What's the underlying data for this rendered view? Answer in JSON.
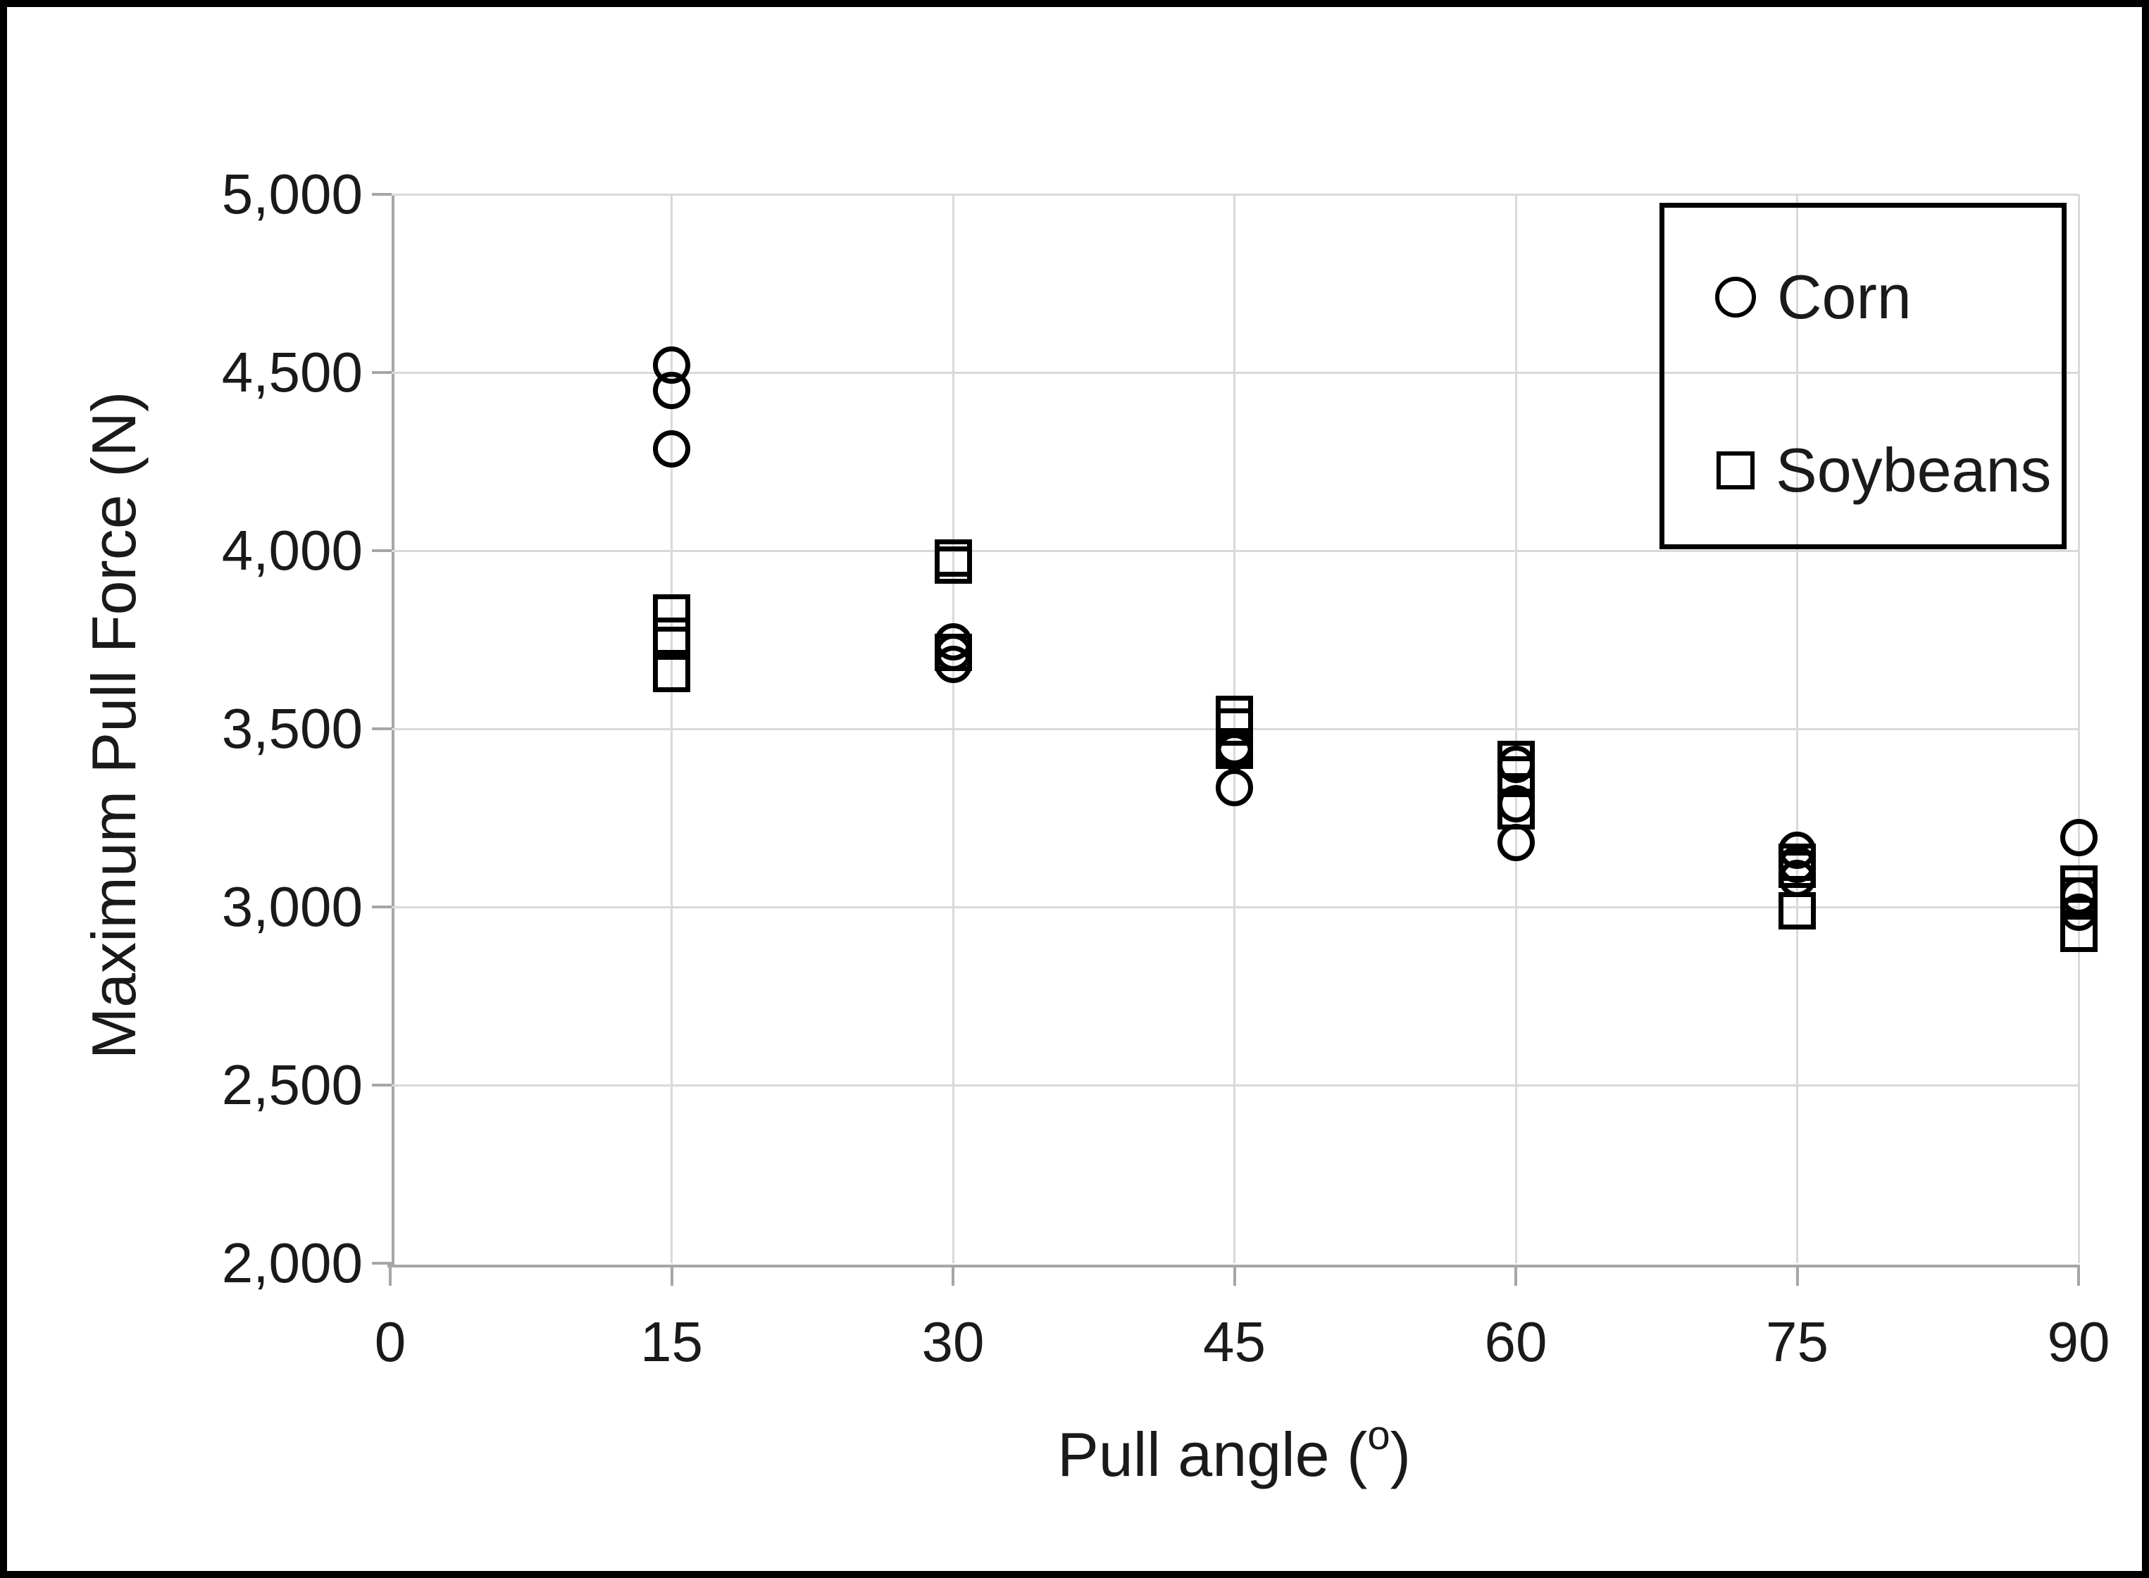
{
  "colors": {
    "background": "#ffffff",
    "frame_border": "#000000",
    "gridline": "#d9d9d9",
    "axis_line": "#a6a6a6",
    "marker_stroke": "#000000",
    "text": "#1a1a1a"
  },
  "chart_data": {
    "type": "scatter",
    "title": "",
    "xlabel": {
      "prefix": "Pull angle (",
      "superscript": "o",
      "suffix": ")"
    },
    "ylabel": "Maximum Pull Force (N)",
    "xlim": [
      0,
      90
    ],
    "ylim": [
      2000,
      5000
    ],
    "grid": true,
    "legend_position": "top-right",
    "x_tick_values": [
      0,
      15,
      30,
      45,
      60,
      75,
      90
    ],
    "x_tick_labels": [
      "0",
      "15",
      "30",
      "45",
      "60",
      "75",
      "90"
    ],
    "y_tick_values": [
      5000,
      4500,
      4000,
      3500,
      3000,
      2500,
      2000
    ],
    "y_tick_labels": [
      "5,000",
      "4,500",
      "4,000",
      "3,500",
      "3,000",
      "2,500",
      "2,000"
    ],
    "series": [
      {
        "name": "Corn",
        "marker": "circle",
        "points": [
          {
            "x": 15,
            "y": 4520
          },
          {
            "x": 15,
            "y": 4450
          },
          {
            "x": 15,
            "y": 4285
          },
          {
            "x": 30,
            "y": 3745
          },
          {
            "x": 30,
            "y": 3715
          },
          {
            "x": 30,
            "y": 3680
          },
          {
            "x": 45,
            "y": 3450
          },
          {
            "x": 45,
            "y": 3435
          },
          {
            "x": 45,
            "y": 3335
          },
          {
            "x": 60,
            "y": 3400
          },
          {
            "x": 60,
            "y": 3290
          },
          {
            "x": 60,
            "y": 3180
          },
          {
            "x": 75,
            "y": 3160
          },
          {
            "x": 75,
            "y": 3120
          },
          {
            "x": 75,
            "y": 3080
          },
          {
            "x": 90,
            "y": 3195
          },
          {
            "x": 90,
            "y": 3030
          },
          {
            "x": 90,
            "y": 2985
          }
        ]
      },
      {
        "name": "Soybeans",
        "marker": "square",
        "points": [
          {
            "x": 15,
            "y": 3825
          },
          {
            "x": 15,
            "y": 3760
          },
          {
            "x": 15,
            "y": 3655
          },
          {
            "x": 30,
            "y": 3980
          },
          {
            "x": 30,
            "y": 3960
          },
          {
            "x": 30,
            "y": 3715
          },
          {
            "x": 45,
            "y": 3540
          },
          {
            "x": 45,
            "y": 3505
          },
          {
            "x": 45,
            "y": 3440
          },
          {
            "x": 60,
            "y": 3415
          },
          {
            "x": 60,
            "y": 3370
          },
          {
            "x": 60,
            "y": 3270
          },
          {
            "x": 75,
            "y": 3125
          },
          {
            "x": 75,
            "y": 3105
          },
          {
            "x": 75,
            "y": 2990
          },
          {
            "x": 90,
            "y": 3065
          },
          {
            "x": 90,
            "y": 3030
          },
          {
            "x": 90,
            "y": 2925
          }
        ]
      }
    ]
  }
}
